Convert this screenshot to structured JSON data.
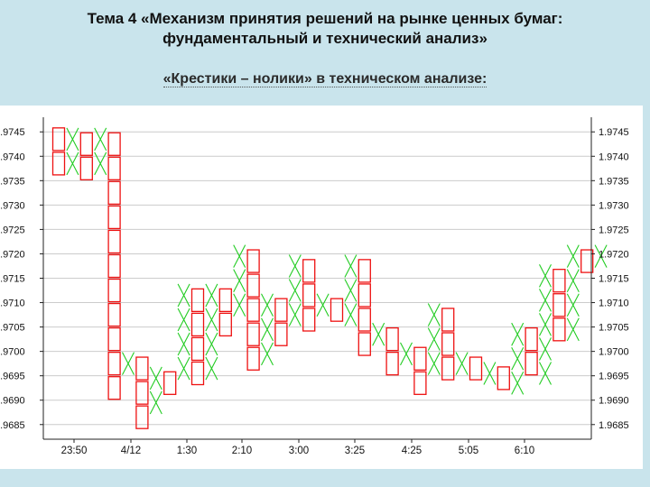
{
  "slide": {
    "title_line1": "Тема 4 «Механизм принятия решений на рынке ценных бумаг:",
    "title_line2": "фундаментальный и технический анализ»",
    "subtitle": "«Крестики – нолики» в техническом анализе:"
  },
  "colors": {
    "x_mark": "#22cc22",
    "o_mark": "#ee1111",
    "grid": "#cccccc",
    "slide_bg": "#c9e4ec"
  },
  "chart_data": {
    "type": "point-and-figure",
    "box_size": 0.0005,
    "ylim": [
      1.9682,
      1.9748
    ],
    "y_ticks": [
      "1.9685",
      "1.9690",
      "1.9695",
      "1.9700",
      "1.9705",
      "1.9710",
      "1.9715",
      "1.9720",
      "1.9725",
      "1.9730",
      "1.9735",
      "1.9740",
      "1.9745"
    ],
    "x_tick_labels": [
      "23:50",
      "4/12",
      "1:30",
      "2:10",
      "3:00",
      "3:25",
      "4:25",
      "5:05",
      "6:10"
    ],
    "columns": [
      {
        "type": "O",
        "high": 1.9746,
        "low": 1.9734
      },
      {
        "type": "X",
        "low": 1.9735,
        "high": 1.9746
      },
      {
        "type": "O",
        "high": 1.9745,
        "low": 1.9734
      },
      {
        "type": "X",
        "low": 1.9735,
        "high": 1.9746
      },
      {
        "type": "O",
        "high": 1.9745,
        "low": 1.9692
      },
      {
        "type": "X",
        "low": 1.9693,
        "high": 1.97
      },
      {
        "type": "O",
        "high": 1.9699,
        "low": 1.9686
      },
      {
        "type": "X",
        "low": 1.9687,
        "high": 1.9697
      },
      {
        "type": "O",
        "high": 1.9696,
        "low": 1.9691
      },
      {
        "type": "X",
        "low": 1.9692,
        "high": 1.9714
      },
      {
        "type": "O",
        "high": 1.9713,
        "low": 1.9694
      },
      {
        "type": "X",
        "low": 1.9695,
        "high": 1.9714
      },
      {
        "type": "O",
        "high": 1.9713,
        "low": 1.9704
      },
      {
        "type": "X",
        "low": 1.9705,
        "high": 1.9722
      },
      {
        "type": "O",
        "high": 1.9721,
        "low": 1.9694
      },
      {
        "type": "X",
        "low": 1.9695,
        "high": 1.9712
      },
      {
        "type": "O",
        "high": 1.9711,
        "low": 1.9702
      },
      {
        "type": "X",
        "low": 1.9703,
        "high": 1.972
      },
      {
        "type": "O",
        "high": 1.9719,
        "low": 1.9704
      },
      {
        "type": "X",
        "low": 1.9705,
        "high": 1.9712
      },
      {
        "type": "O",
        "high": 1.9711,
        "low": 1.9704
      },
      {
        "type": "X",
        "low": 1.9705,
        "high": 1.972
      },
      {
        "type": "O",
        "high": 1.9719,
        "low": 1.9699
      },
      {
        "type": "X",
        "low": 1.97,
        "high": 1.9706
      },
      {
        "type": "O",
        "high": 1.9705,
        "low": 1.9696
      },
      {
        "type": "X",
        "low": 1.9697,
        "high": 1.9702
      },
      {
        "type": "O",
        "high": 1.9701,
        "low": 1.9692
      },
      {
        "type": "X",
        "low": 1.9693,
        "high": 1.971
      },
      {
        "type": "O",
        "high": 1.9709,
        "low": 1.9692
      },
      {
        "type": "X",
        "low": 1.9693,
        "high": 1.97
      },
      {
        "type": "O",
        "high": 1.9699,
        "low": 1.9692
      },
      {
        "type": "X",
        "low": 1.9693,
        "high": 1.9698
      },
      {
        "type": "O",
        "high": 1.9697,
        "low": 1.9692
      },
      {
        "type": "X",
        "low": 1.9693,
        "high": 1.9706
      },
      {
        "type": "O",
        "high": 1.9705,
        "low": 1.9694
      },
      {
        "type": "X",
        "low": 1.9695,
        "high": 1.9718
      },
      {
        "type": "O",
        "high": 1.9717,
        "low": 1.9702
      },
      {
        "type": "X",
        "low": 1.9703,
        "high": 1.9722
      },
      {
        "type": "O",
        "high": 1.9721,
        "low": 1.9716
      },
      {
        "type": "X",
        "low": 1.9717,
        "high": 1.9722
      }
    ]
  }
}
